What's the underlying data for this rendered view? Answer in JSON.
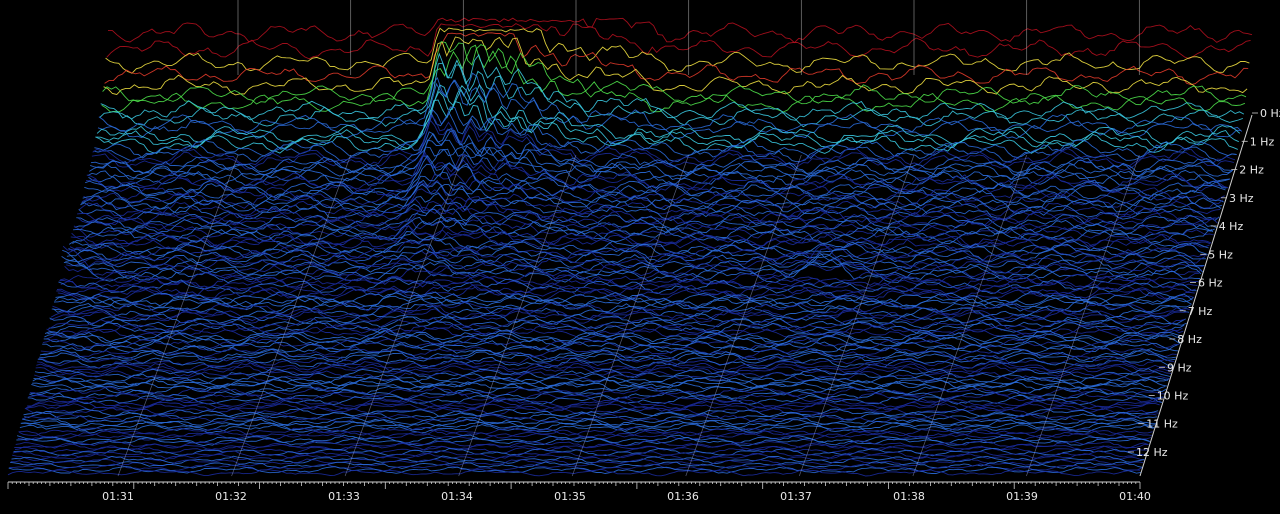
{
  "chart_data": {
    "type": "waterfall-spectrogram",
    "x_axis": {
      "ticks": [
        "01:31",
        "01:32",
        "01:33",
        "01:34",
        "01:35",
        "01:36",
        "01:37",
        "01:38",
        "01:39",
        "01:40"
      ],
      "range_minutes": [
        0,
        9
      ]
    },
    "frequency_axis": {
      "ticks": [
        "0 Hz",
        "1 Hz",
        "2 Hz",
        "3 Hz",
        "4 Hz",
        "5 Hz",
        "6 Hz",
        "7 Hz",
        "8 Hz",
        "9 Hz",
        "10 Hz",
        "11 Hz",
        "12 Hz"
      ],
      "range_hz": [
        0,
        12
      ]
    },
    "colormap": [
      "#1a2a9a",
      "#2a6ad8",
      "#3ac8e0",
      "#4ee04a",
      "#f0e040",
      "#e03a2a",
      "#b0101e"
    ],
    "background": "#000000",
    "grid": true,
    "event": {
      "start": "01:33",
      "peak": "01:34",
      "end": "01:35",
      "frequency_range_hz": [
        0,
        5
      ],
      "note": "strong broadband energy burst"
    },
    "minor_events": [
      {
        "time": "01:31",
        "frequency_hz": 5
      },
      {
        "time": "01:37",
        "frequency_hz": 5
      }
    ]
  }
}
